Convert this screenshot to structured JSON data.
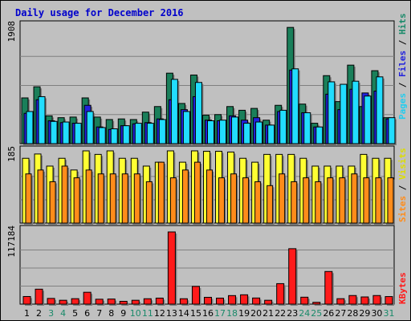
{
  "title": "Daily usage for December 2016",
  "colors": {
    "title": "#0000cc",
    "hits": "#1a7f5a",
    "files": "#2222dd",
    "pages": "#22ddff",
    "visits": "#ffff33",
    "sites": "#ff8c1a",
    "kbytes": "#ff1a1a",
    "weekend_label": "#1a8a6a",
    "weekday_label": "#000000"
  },
  "legend": {
    "top": [
      {
        "text": "Pages",
        "color": "#22ccee"
      },
      {
        "text": " / ",
        "color": "#000000"
      },
      {
        "text": "Files",
        "color": "#2222dd"
      },
      {
        "text": " / ",
        "color": "#000000"
      },
      {
        "text": "Hits",
        "color": "#1a8a6a"
      }
    ],
    "mid": [
      {
        "text": "Sites",
        "color": "#ff8c1a"
      },
      {
        "text": " / ",
        "color": "#000000"
      },
      {
        "text": "Visits",
        "color": "#dddd00"
      }
    ],
    "bottom": [
      {
        "text": "KBytes",
        "color": "#ff1a1a"
      }
    ]
  },
  "chart_data": [
    {
      "type": "bar",
      "panel": "top",
      "ymax_label": "1908",
      "ylim": [
        0,
        1908
      ],
      "categories": [
        "1",
        "2",
        "3",
        "4",
        "5",
        "6",
        "7",
        "8",
        "9",
        "10",
        "11",
        "12",
        "13",
        "14",
        "15",
        "16",
        "17",
        "18",
        "19",
        "20",
        "21",
        "22",
        "23",
        "24",
        "25",
        "26",
        "27",
        "28",
        "29",
        "30",
        "31"
      ],
      "weekend": [
        3,
        4,
        10,
        11,
        17,
        18,
        24,
        25,
        31
      ],
      "series": [
        {
          "name": "Hits",
          "values": [
            740,
            920,
            450,
            420,
            430,
            740,
            430,
            390,
            400,
            390,
            510,
            600,
            1140,
            650,
            1110,
            460,
            470,
            600,
            540,
            570,
            380,
            620,
            1880,
            640,
            330,
            1100,
            680,
            1270,
            600,
            1180,
            420
          ]
        },
        {
          "name": "Files",
          "values": [
            490,
            710,
            370,
            340,
            330,
            620,
            270,
            230,
            290,
            320,
            340,
            400,
            710,
            550,
            760,
            380,
            370,
            450,
            380,
            420,
            300,
            520,
            1190,
            500,
            270,
            800,
            550,
            880,
            820,
            850,
            400
          ]
        },
        {
          "name": "Pages",
          "values": [
            520,
            760,
            360,
            350,
            330,
            520,
            260,
            240,
            290,
            330,
            330,
            390,
            1040,
            520,
            990,
            370,
            380,
            430,
            330,
            350,
            300,
            540,
            1210,
            500,
            270,
            1000,
            960,
            1010,
            770,
            1080,
            420
          ]
        }
      ]
    },
    {
      "type": "bar",
      "panel": "middle",
      "ymax_label": "185",
      "ylim": [
        0,
        185
      ],
      "categories": [
        "1",
        "2",
        "3",
        "4",
        "5",
        "6",
        "7",
        "8",
        "9",
        "10",
        "11",
        "12",
        "13",
        "14",
        "15",
        "16",
        "17",
        "18",
        "19",
        "20",
        "21",
        "22",
        "23",
        "24",
        "25",
        "26",
        "27",
        "28",
        "29",
        "30",
        "31"
      ],
      "series": [
        {
          "name": "Visits",
          "values": [
            166,
            177,
            146,
            166,
            136,
            185,
            176,
            185,
            166,
            166,
            146,
            156,
            185,
            156,
            185,
            184,
            184,
            182,
            166,
            156,
            176,
            176,
            176,
            166,
            146,
            146,
            146,
            146,
            176,
            166,
            166
          ]
        },
        {
          "name": "Sites",
          "values": [
            126,
            136,
            106,
            146,
            116,
            136,
            126,
            126,
            126,
            126,
            106,
            156,
            116,
            136,
            156,
            136,
            116,
            126,
            116,
            106,
            96,
            126,
            106,
            116,
            106,
            116,
            116,
            126,
            116,
            116,
            116
          ]
        }
      ]
    },
    {
      "type": "bar",
      "panel": "bottom",
      "ymax_label": "117184",
      "ylim": [
        0,
        117184
      ],
      "categories": [
        "1",
        "2",
        "3",
        "4",
        "5",
        "6",
        "7",
        "8",
        "9",
        "10",
        "11",
        "12",
        "13",
        "14",
        "15",
        "16",
        "17",
        "18",
        "19",
        "20",
        "21",
        "22",
        "23",
        "24",
        "25",
        "26",
        "27",
        "28",
        "29",
        "30",
        "31"
      ],
      "series": [
        {
          "name": "KBytes",
          "values": [
            12400,
            24300,
            9300,
            6300,
            8900,
            19300,
            8000,
            8300,
            4600,
            6300,
            8800,
            9800,
            117184,
            8800,
            28800,
            11100,
            9800,
            13900,
            15200,
            10000,
            6300,
            33300,
            90000,
            11300,
            3000,
            53000,
            8900,
            14000,
            11700,
            14000,
            12300
          ]
        }
      ]
    }
  ]
}
